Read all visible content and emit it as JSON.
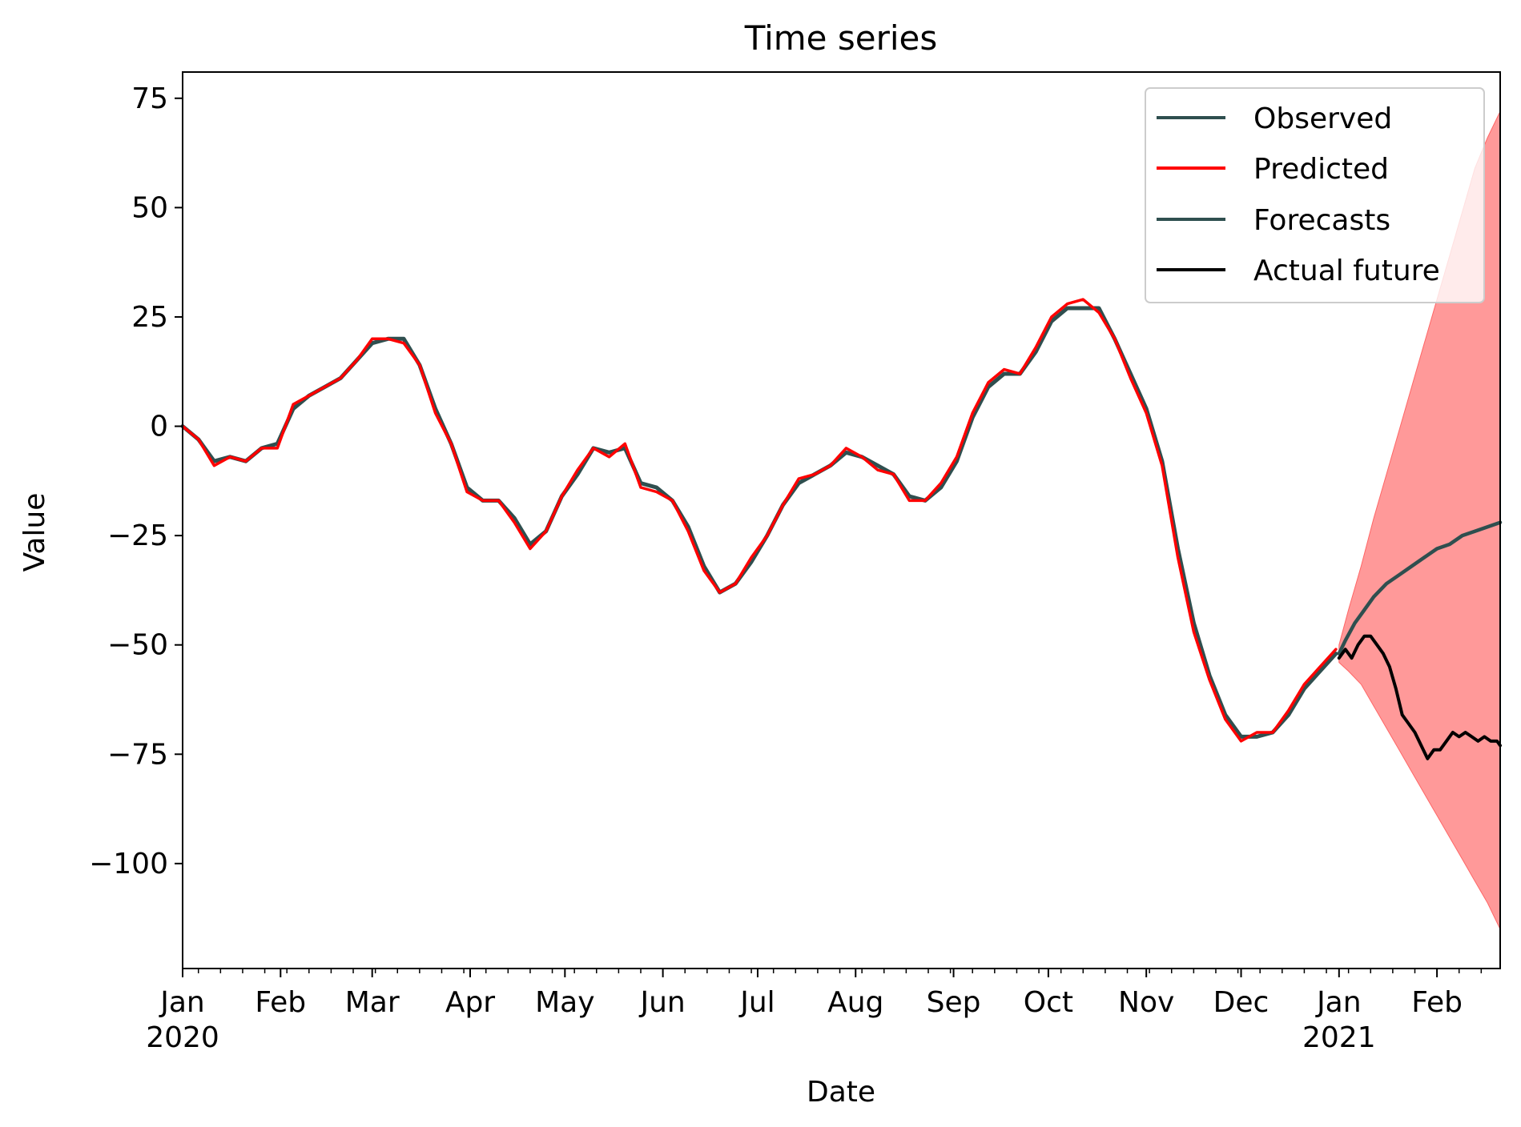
{
  "chart_data": {
    "type": "line",
    "title": "Time series",
    "xlabel": "Date",
    "ylabel": "Value",
    "xlim": [
      "2020-01-01",
      "2021-02-21"
    ],
    "ylim": [
      -124,
      81
    ],
    "yticks": [
      75,
      50,
      25,
      0,
      -25,
      -50,
      -75,
      -100
    ],
    "ytick_labels": [
      "75",
      "50",
      "25",
      "0",
      "−25",
      "−50",
      "−75",
      "−100"
    ],
    "xticks": [
      {
        "date": "2020-01-01",
        "label": "Jan",
        "year": "2020"
      },
      {
        "date": "2020-02-01",
        "label": "Feb"
      },
      {
        "date": "2020-03-01",
        "label": "Mar"
      },
      {
        "date": "2020-04-01",
        "label": "Apr"
      },
      {
        "date": "2020-05-01",
        "label": "May"
      },
      {
        "date": "2020-06-01",
        "label": "Jun"
      },
      {
        "date": "2020-07-01",
        "label": "Jul"
      },
      {
        "date": "2020-08-01",
        "label": "Aug"
      },
      {
        "date": "2020-09-01",
        "label": "Sep"
      },
      {
        "date": "2020-10-01",
        "label": "Oct"
      },
      {
        "date": "2020-11-01",
        "label": "Nov"
      },
      {
        "date": "2020-12-01",
        "label": "Dec"
      },
      {
        "date": "2021-01-01",
        "label": "Jan",
        "year": "2021"
      },
      {
        "date": "2021-02-01",
        "label": "Feb"
      }
    ],
    "grid": false,
    "legend_position": "top-right",
    "legend": [
      "Observed",
      "Predicted",
      "Forecasts",
      "Actual future"
    ],
    "colors": {
      "observed": "#2f4f4f",
      "predicted": "#ff0000",
      "forecasts": "#2f4f4f",
      "actual_future": "#000000",
      "confidence_band": "#ff9999"
    },
    "series": [
      {
        "name": "Observed",
        "x": [
          "2020-01-01",
          "2020-01-06",
          "2020-01-11",
          "2020-01-16",
          "2020-01-21",
          "2020-01-26",
          "2020-01-31",
          "2020-02-05",
          "2020-02-10",
          "2020-02-15",
          "2020-02-20",
          "2020-02-25",
          "2020-03-01",
          "2020-03-06",
          "2020-03-11",
          "2020-03-16",
          "2020-03-21",
          "2020-03-26",
          "2020-03-31",
          "2020-04-05",
          "2020-04-10",
          "2020-04-15",
          "2020-04-20",
          "2020-04-25",
          "2020-04-30",
          "2020-05-05",
          "2020-05-10",
          "2020-05-15",
          "2020-05-20",
          "2020-05-25",
          "2020-05-30",
          "2020-06-04",
          "2020-06-09",
          "2020-06-14",
          "2020-06-19",
          "2020-06-24",
          "2020-06-29",
          "2020-07-04",
          "2020-07-09",
          "2020-07-14",
          "2020-07-19",
          "2020-07-24",
          "2020-07-29",
          "2020-08-03",
          "2020-08-08",
          "2020-08-13",
          "2020-08-18",
          "2020-08-23",
          "2020-08-28",
          "2020-09-02",
          "2020-09-07",
          "2020-09-12",
          "2020-09-17",
          "2020-09-22",
          "2020-09-27",
          "2020-10-02",
          "2020-10-07",
          "2020-10-12",
          "2020-10-17",
          "2020-10-22",
          "2020-10-27",
          "2020-11-01",
          "2020-11-06",
          "2020-11-11",
          "2020-11-16",
          "2020-11-21",
          "2020-11-26",
          "2020-12-01",
          "2020-12-06",
          "2020-12-11",
          "2020-12-16",
          "2020-12-21",
          "2020-12-26",
          "2020-12-31"
        ],
        "values": [
          0,
          -3,
          -8,
          -7,
          -8,
          -5,
          -4,
          4,
          7,
          9,
          11,
          15,
          19,
          20,
          20,
          14,
          4,
          -4,
          -14,
          -17,
          -17,
          -21,
          -27,
          -24,
          -16,
          -11,
          -5,
          -6,
          -5,
          -13,
          -14,
          -17,
          -23,
          -32,
          -38,
          -36,
          -31,
          -25,
          -18,
          -13,
          -11,
          -9,
          -6,
          -7,
          -9,
          -11,
          -16,
          -17,
          -14,
          -8,
          2,
          9,
          12,
          12,
          17,
          24,
          27,
          27,
          27,
          20,
          12,
          4,
          -8,
          -28,
          -45,
          -57,
          -66,
          -71,
          -71,
          -70,
          -66,
          -60,
          -56,
          -52
        ]
      },
      {
        "name": "Predicted",
        "x": [
          "2020-01-01",
          "2020-01-06",
          "2020-01-11",
          "2020-01-16",
          "2020-01-21",
          "2020-01-26",
          "2020-01-31",
          "2020-02-05",
          "2020-02-10",
          "2020-02-15",
          "2020-02-20",
          "2020-02-25",
          "2020-03-01",
          "2020-03-06",
          "2020-03-11",
          "2020-03-16",
          "2020-03-21",
          "2020-03-26",
          "2020-03-31",
          "2020-04-05",
          "2020-04-10",
          "2020-04-15",
          "2020-04-20",
          "2020-04-25",
          "2020-04-30",
          "2020-05-05",
          "2020-05-10",
          "2020-05-15",
          "2020-05-20",
          "2020-05-25",
          "2020-05-30",
          "2020-06-04",
          "2020-06-09",
          "2020-06-14",
          "2020-06-19",
          "2020-06-24",
          "2020-06-29",
          "2020-07-04",
          "2020-07-09",
          "2020-07-14",
          "2020-07-19",
          "2020-07-24",
          "2020-07-29",
          "2020-08-03",
          "2020-08-08",
          "2020-08-13",
          "2020-08-18",
          "2020-08-23",
          "2020-08-28",
          "2020-09-02",
          "2020-09-07",
          "2020-09-12",
          "2020-09-17",
          "2020-09-22",
          "2020-09-27",
          "2020-10-02",
          "2020-10-07",
          "2020-10-12",
          "2020-10-17",
          "2020-10-22",
          "2020-10-27",
          "2020-11-01",
          "2020-11-06",
          "2020-11-11",
          "2020-11-16",
          "2020-11-21",
          "2020-11-26",
          "2020-12-01",
          "2020-12-06",
          "2020-12-11",
          "2020-12-16",
          "2020-12-21",
          "2020-12-26",
          "2020-12-31"
        ],
        "values": [
          0,
          -3,
          -9,
          -7,
          -8,
          -5,
          -5,
          5,
          7,
          9,
          11,
          15,
          20,
          20,
          19,
          14,
          3,
          -4,
          -15,
          -17,
          -17,
          -22,
          -28,
          -24,
          -16,
          -10,
          -5,
          -7,
          -4,
          -14,
          -15,
          -17,
          -24,
          -33,
          -38,
          -36,
          -30,
          -25,
          -18,
          -12,
          -11,
          -9,
          -5,
          -7,
          -10,
          -11,
          -17,
          -17,
          -13,
          -7,
          3,
          10,
          13,
          12,
          18,
          25,
          28,
          29,
          26,
          20,
          11,
          3,
          -9,
          -30,
          -47,
          -58,
          -67,
          -72,
          -70,
          -70,
          -65,
          -59,
          -55,
          -51
        ]
      },
      {
        "name": "Forecasts",
        "x": [
          "2021-01-01",
          "2021-01-03",
          "2021-01-06",
          "2021-01-09",
          "2021-01-12",
          "2021-01-16",
          "2021-01-20",
          "2021-01-24",
          "2021-01-28",
          "2021-02-01",
          "2021-02-05",
          "2021-02-09",
          "2021-02-13",
          "2021-02-17",
          "2021-02-21"
        ],
        "values": [
          -52,
          -49,
          -45,
          -42,
          -39,
          -36,
          -34,
          -32,
          -30,
          -28,
          -27,
          -25,
          -24,
          -23,
          -22
        ]
      },
      {
        "name": "Actual future",
        "x": [
          "2021-01-01",
          "2021-01-03",
          "2021-01-05",
          "2021-01-07",
          "2021-01-09",
          "2021-01-11",
          "2021-01-13",
          "2021-01-15",
          "2021-01-17",
          "2021-01-19",
          "2021-01-21",
          "2021-01-23",
          "2021-01-25",
          "2021-01-27",
          "2021-01-29",
          "2021-01-31",
          "2021-02-02",
          "2021-02-04",
          "2021-02-06",
          "2021-02-08",
          "2021-02-10",
          "2021-02-12",
          "2021-02-14",
          "2021-02-16",
          "2021-02-18",
          "2021-02-20",
          "2021-02-21"
        ],
        "values": [
          -53,
          -51,
          -53,
          -50,
          -48,
          -48,
          -50,
          -52,
          -55,
          -60,
          -66,
          -68,
          -70,
          -73,
          -76,
          -74,
          -74,
          -72,
          -70,
          -71,
          -70,
          -71,
          -72,
          -71,
          -72,
          -72,
          -73
        ]
      }
    ],
    "confidence_band": {
      "x": [
        "2021-01-01",
        "2021-01-04",
        "2021-01-08",
        "2021-01-12",
        "2021-01-16",
        "2021-01-20",
        "2021-01-24",
        "2021-01-28",
        "2021-02-01",
        "2021-02-05",
        "2021-02-09",
        "2021-02-13",
        "2021-02-17",
        "2021-02-21"
      ],
      "lower": [
        -54,
        -56,
        -59,
        -64,
        -69,
        -74,
        -79,
        -84,
        -89,
        -94,
        -99,
        -104,
        -109,
        -115
      ],
      "upper": [
        -50,
        -42,
        -32,
        -21,
        -11,
        -1,
        9,
        19,
        29,
        39,
        49,
        59,
        66,
        72
      ]
    }
  }
}
